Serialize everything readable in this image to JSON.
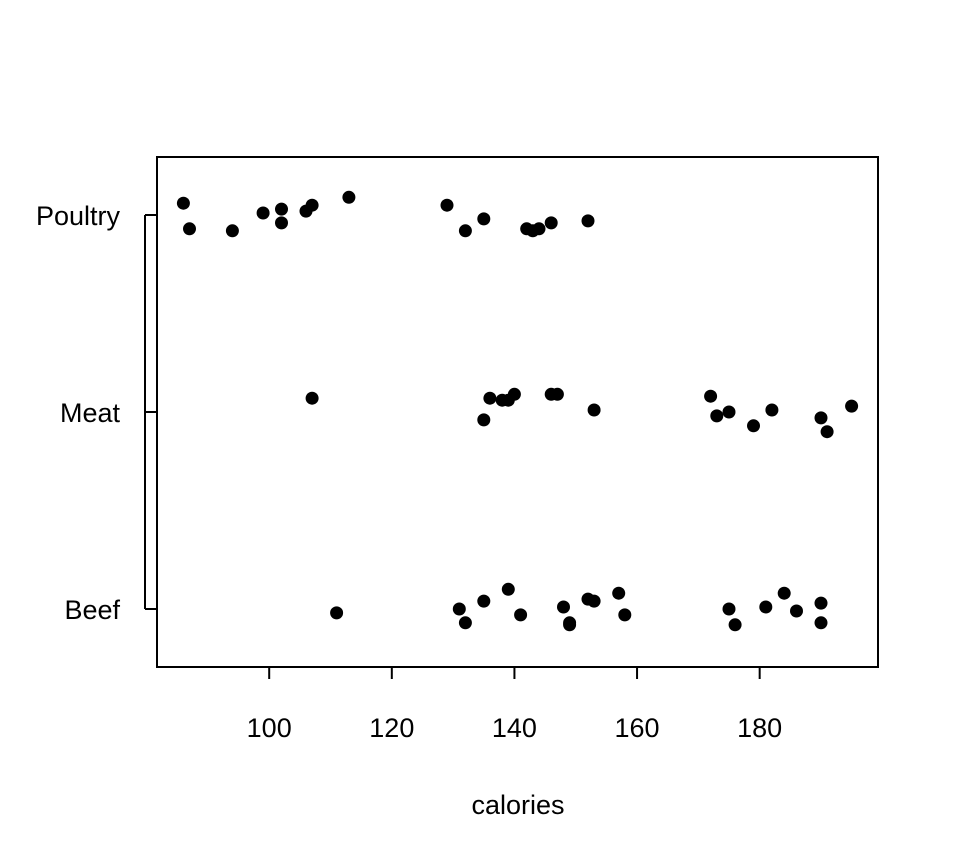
{
  "chart_data": {
    "type": "scatter",
    "title": "",
    "xlabel": "calories",
    "ylabel": "",
    "xlim": [
      81.7,
      199.3
    ],
    "xticks": [
      100,
      120,
      140,
      160,
      180
    ],
    "categories": [
      "Beef",
      "Meat",
      "Poultry"
    ],
    "grid": false,
    "legend": "none",
    "point_color": "#000000",
    "series": [
      {
        "category": "Beef",
        "points": [
          [
            111,
            -0.02
          ],
          [
            131,
            0.0
          ],
          [
            132,
            -0.07
          ],
          [
            135,
            0.04
          ],
          [
            139,
            0.1
          ],
          [
            141,
            -0.03
          ],
          [
            148,
            0.01
          ],
          [
            149,
            -0.08
          ],
          [
            149,
            -0.07
          ],
          [
            152,
            0.05
          ],
          [
            153,
            0.04
          ],
          [
            157,
            0.08
          ],
          [
            158,
            -0.03
          ],
          [
            175,
            0.0
          ],
          [
            176,
            -0.08
          ],
          [
            181,
            0.01
          ],
          [
            184,
            0.08
          ],
          [
            186,
            -0.01
          ],
          [
            190,
            0.03
          ],
          [
            190,
            -0.07
          ]
        ]
      },
      {
        "category": "Meat",
        "points": [
          [
            107,
            0.07
          ],
          [
            135,
            -0.04
          ],
          [
            136,
            0.07
          ],
          [
            138,
            0.06
          ],
          [
            139,
            0.06
          ],
          [
            140,
            0.09
          ],
          [
            146,
            0.09
          ],
          [
            147,
            0.09
          ],
          [
            153,
            0.01
          ],
          [
            172,
            0.08
          ],
          [
            173,
            -0.02
          ],
          [
            175,
            0.0
          ],
          [
            179,
            -0.07
          ],
          [
            182,
            0.01
          ],
          [
            190,
            -0.03
          ],
          [
            191,
            -0.1
          ],
          [
            195,
            0.03
          ]
        ]
      },
      {
        "category": "Poultry",
        "points": [
          [
            86,
            0.06
          ],
          [
            87,
            -0.07
          ],
          [
            94,
            -0.08
          ],
          [
            99,
            0.01
          ],
          [
            102,
            0.03
          ],
          [
            102,
            -0.04
          ],
          [
            106,
            0.02
          ],
          [
            107,
            0.05
          ],
          [
            113,
            0.09
          ],
          [
            129,
            0.05
          ],
          [
            132,
            -0.08
          ],
          [
            135,
            -0.02
          ],
          [
            142,
            -0.07
          ],
          [
            143,
            -0.08
          ],
          [
            144,
            -0.07
          ],
          [
            146,
            -0.04
          ],
          [
            152,
            -0.03
          ]
        ]
      }
    ]
  }
}
